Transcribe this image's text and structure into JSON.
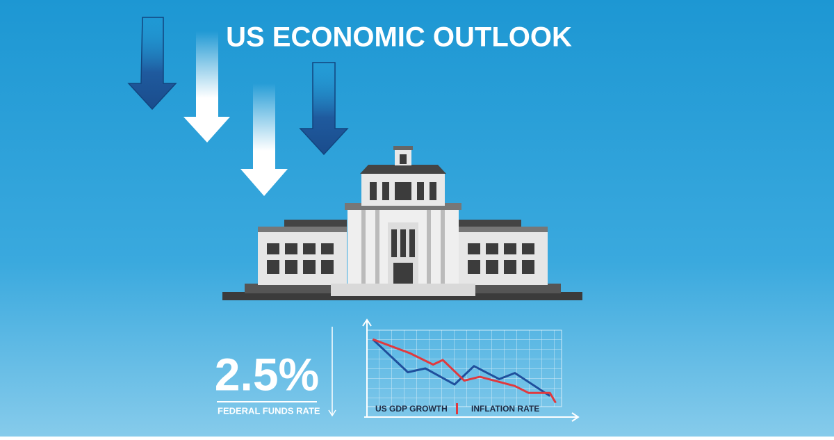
{
  "header": {
    "title": "US ECONOMIC OUTLOOK"
  },
  "stat": {
    "value": "2.5%",
    "label": "FEDERAL FUNDS RATE"
  },
  "chart_data": {
    "type": "line",
    "xlim": [
      0,
      10
    ],
    "ylim": [
      0,
      10
    ],
    "series": [
      {
        "name": "US GDP GROWTH",
        "color": "#1f4f9c",
        "x": [
          0.3,
          2.1,
          3,
          4.5,
          5.5,
          6.8,
          7.6,
          9.4
        ],
        "values": [
          8.8,
          4.5,
          5.0,
          2.9,
          5.3,
          3.6,
          4.4,
          1.4
        ]
      },
      {
        "name": "INFLATION RATE",
        "color": "#e0393e",
        "x": [
          0.3,
          2.2,
          3.4,
          3.9,
          5,
          5.8,
          7.6,
          8.3,
          9.4,
          9.7
        ],
        "values": [
          8.8,
          7.0,
          5.5,
          6.1,
          3.4,
          3.9,
          2.7,
          1.8,
          1.8,
          0.5
        ]
      }
    ]
  }
}
